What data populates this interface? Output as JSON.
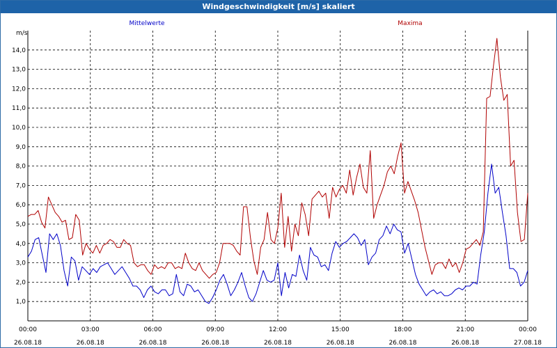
{
  "window": {
    "title": "Windgeschwindigkeit [m/s] skaliert"
  },
  "chart_data": {
    "type": "line",
    "title": "Windgeschwindigkeit [m/s] skaliert",
    "ylabel": "m/s",
    "ylim": [
      0,
      15
    ],
    "yticks": [
      "1,0",
      "2,0",
      "3,0",
      "4,0",
      "5,0",
      "6,0",
      "7,0",
      "8,0",
      "9,0",
      "10,0",
      "11,0",
      "12,0",
      "13,0",
      "14,0"
    ],
    "xlim": [
      0,
      24
    ],
    "xticks": [
      {
        "time": "00:00",
        "date": "26.08.18"
      },
      {
        "time": "03:00",
        "date": "26.08.18"
      },
      {
        "time": "06:00",
        "date": "26.08.18"
      },
      {
        "time": "09:00",
        "date": "26.08.18"
      },
      {
        "time": "12:00",
        "date": "26.08.18"
      },
      {
        "time": "15:00",
        "date": "26.08.18"
      },
      {
        "time": "18:00",
        "date": "26.08.18"
      },
      {
        "time": "21:00",
        "date": "26.08.18"
      },
      {
        "time": "00:00",
        "date": "27.08.18"
      }
    ],
    "grid": true,
    "series": [
      {
        "name": "Mittelwerte",
        "color": "#0000c8",
        "values": [
          3.3,
          3.6,
          4.2,
          4.3,
          3.4,
          2.5,
          4.5,
          4.2,
          4.5,
          3.9,
          2.6,
          1.8,
          3.3,
          3.1,
          2.1,
          2.8,
          2.6,
          2.4,
          2.7,
          2.5,
          2.8,
          2.9,
          3.0,
          2.7,
          2.4,
          2.6,
          2.8,
          2.5,
          2.2,
          1.8,
          1.8,
          1.6,
          1.2,
          1.6,
          1.8,
          1.5,
          1.4,
          1.6,
          1.6,
          1.3,
          1.4,
          2.4,
          1.5,
          1.3,
          1.9,
          1.8,
          1.5,
          1.6,
          1.3,
          1.0,
          0.9,
          1.2,
          1.6,
          2.1,
          2.4,
          1.9,
          1.3,
          1.6,
          2.0,
          2.5,
          1.8,
          1.2,
          1.0,
          1.4,
          2.0,
          2.6,
          2.1,
          2.0,
          2.1,
          3.0,
          1.3,
          2.5,
          1.7,
          2.4,
          2.3,
          3.4,
          2.6,
          2.1,
          3.8,
          3.4,
          3.3,
          2.8,
          2.9,
          2.6,
          3.5,
          4.1,
          3.8,
          4.0,
          4.1,
          4.3,
          4.5,
          4.3,
          3.9,
          4.2,
          2.9,
          3.3,
          3.5,
          4.2,
          4.4,
          4.9,
          4.5,
          5.0,
          4.7,
          4.6,
          3.5,
          4.0,
          3.2,
          2.4,
          1.9,
          1.6,
          1.3,
          1.5,
          1.6,
          1.4,
          1.5,
          1.3,
          1.3,
          1.4,
          1.6,
          1.7,
          1.6,
          1.8,
          1.8,
          2.0,
          1.9,
          3.4,
          4.6,
          6.6,
          8.1,
          6.6,
          6.9,
          5.6,
          4.4,
          2.7,
          2.7,
          2.5,
          1.8,
          2.0,
          2.6
        ]
      },
      {
        "name": "Maxima",
        "color": "#b00000",
        "values": [
          5.4,
          5.5,
          5.5,
          5.7,
          5.1,
          4.8,
          6.4,
          6.0,
          5.6,
          5.4,
          5.1,
          5.2,
          4.2,
          4.3,
          5.5,
          5.2,
          3.4,
          4.0,
          3.7,
          3.5,
          3.9,
          3.5,
          3.9,
          4.0,
          4.2,
          4.1,
          3.8,
          3.8,
          4.2,
          4.0,
          3.9,
          3.0,
          2.8,
          2.9,
          2.9,
          2.6,
          2.4,
          2.9,
          2.7,
          2.8,
          2.7,
          3.0,
          3.0,
          2.7,
          2.8,
          2.7,
          3.5,
          3.0,
          2.7,
          2.6,
          3.0,
          2.6,
          2.4,
          2.2,
          2.4,
          2.5,
          3.0,
          4.0,
          4.0,
          4.0,
          3.9,
          3.6,
          3.4,
          5.9,
          5.9,
          4.3,
          3.1,
          2.4,
          3.8,
          4.2,
          5.6,
          4.2,
          4.0,
          4.8,
          6.6,
          3.8,
          5.4,
          3.6,
          5.0,
          4.4,
          6.1,
          5.5,
          4.4,
          6.3,
          6.5,
          6.7,
          6.4,
          6.6,
          5.3,
          6.9,
          6.4,
          6.8,
          7.0,
          6.6,
          7.8,
          6.5,
          7.4,
          8.1,
          6.9,
          6.6,
          8.8,
          5.3,
          6.0,
          6.5,
          7.0,
          7.7,
          8.0,
          7.6,
          8.5,
          9.2,
          6.6,
          7.2,
          6.7,
          6.2,
          5.6,
          4.7,
          3.8,
          3.1,
          2.4,
          2.9,
          3.0,
          3.0,
          2.7,
          3.2,
          2.8,
          3.0,
          2.5,
          3.0,
          3.7,
          3.8,
          4.0,
          4.2,
          3.9,
          4.6,
          11.5,
          11.6,
          13.2,
          14.6,
          12.6,
          11.4,
          11.7,
          8.0,
          8.3,
          5.6,
          4.1,
          4.2,
          6.6
        ]
      }
    ]
  }
}
